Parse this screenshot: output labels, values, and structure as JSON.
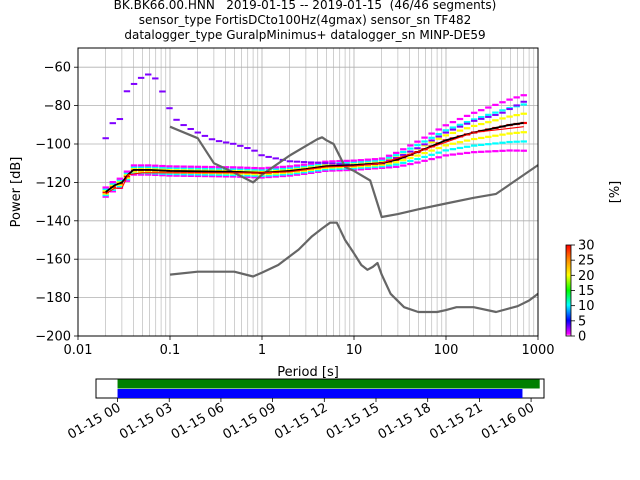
{
  "title_lines": [
    "BK.BK66.00.HNN   2019-01-15 -- 2019-01-15  (46/46 segments)",
    "sensor_type FortisDCto100Hz(4gmax) sensor_sn TF482",
    "datalogger_type GuralpMinimus+ datalogger_sn MINP-DE59"
  ],
  "chart_data": [
    {
      "type": "heatmap",
      "title": "BK.BK66.00.HNN   2019-01-15 -- 2019-01-15  (46/46 segments)",
      "xlabel": "Period [s]",
      "ylabel": "Power [dB]",
      "xscale": "log",
      "xlim": [
        0.01,
        1000
      ],
      "ylim": [
        -200,
        -50
      ],
      "xticks": [
        "0.01",
        "0.1",
        "1",
        "10",
        "100",
        "1000"
      ],
      "yticks": [
        -200,
        -180,
        -160,
        -140,
        -120,
        -100,
        -80,
        -60
      ],
      "grid": true,
      "colorbar": {
        "label": "[%]",
        "ticks": [
          0,
          5,
          10,
          15,
          20,
          25,
          30
        ],
        "range": [
          0,
          30
        ]
      },
      "colors": {
        "noise_models": "#666666",
        "mode": "#000000",
        "mean": "#ff0000",
        "high_outlier": "#7f00ff",
        "distribution": [
          "#ff00ff",
          "#0000ff",
          "#00ffff",
          "#00ff00",
          "#ffff00",
          "#ff8800",
          "#ff0000"
        ]
      },
      "series": [
        {
          "values": [
            [
              0.1,
              -91
            ],
            [
              0.2,
              -97
            ],
            [
              0.3,
              -110
            ],
            [
              0.5,
              -115
            ],
            [
              0.8,
              -120
            ],
            [
              1,
              -116
            ],
            [
              2,
              -106
            ],
            [
              3,
              -101
            ],
            [
              4,
              -97.5
            ],
            [
              4.5,
              -96.5
            ],
            [
              5,
              -98
            ],
            [
              6,
              -100
            ],
            [
              8,
              -112
            ],
            [
              10,
              -114
            ],
            [
              15,
              -119
            ],
            [
              20,
              -138
            ],
            [
              30,
              -136.5
            ],
            [
              50,
              -134
            ],
            [
              100,
              -131
            ],
            [
              200,
              -128
            ],
            [
              350,
              -126
            ],
            [
              1000,
              -111
            ]
          ]
        },
        {
          "values": [
            [
              0.1,
              -168
            ],
            [
              0.2,
              -166.5
            ],
            [
              0.5,
              -166.5
            ],
            [
              0.8,
              -169
            ],
            [
              1,
              -167
            ],
            [
              1.5,
              -163
            ],
            [
              2.5,
              -155
            ],
            [
              3.5,
              -148
            ],
            [
              4.5,
              -144
            ],
            [
              5.5,
              -141
            ],
            [
              6.5,
              -141
            ],
            [
              8,
              -150
            ],
            [
              10,
              -157
            ],
            [
              12,
              -163
            ],
            [
              14,
              -165.5
            ],
            [
              16,
              -164
            ],
            [
              18,
              -162
            ],
            [
              20,
              -168
            ],
            [
              25,
              -178
            ],
            [
              35,
              -185
            ],
            [
              50,
              -187.5
            ],
            [
              80,
              -187.5
            ],
            [
              100,
              -186.5
            ],
            [
              130,
              -185
            ],
            [
              200,
              -185
            ],
            [
              350,
              -187.5
            ],
            [
              600,
              -184.5
            ],
            [
              800,
              -181.5
            ],
            [
              1000,
              -178
            ]
          ]
        },
        {
          "values": [
            [
              0.02,
              -125
            ],
            [
              0.025,
              -121.5
            ],
            [
              0.03,
              -120
            ],
            [
              0.035,
              -116
            ],
            [
              0.04,
              -113.5
            ],
            [
              0.06,
              -113.5
            ],
            [
              0.1,
              -114
            ],
            [
              0.5,
              -114.5
            ],
            [
              1,
              -115
            ],
            [
              2,
              -114
            ],
            [
              3,
              -113
            ],
            [
              5,
              -111.5
            ],
            [
              10,
              -111
            ],
            [
              20,
              -110
            ],
            [
              30,
              -108
            ],
            [
              50,
              -104
            ],
            [
              80,
              -100
            ],
            [
              100,
              -98
            ],
            [
              200,
              -94
            ],
            [
              500,
              -90
            ],
            [
              700,
              -89
            ]
          ]
        },
        {
          "values": [
            [
              0.02,
              -126
            ],
            [
              0.025,
              -123
            ],
            [
              0.03,
              -123
            ],
            [
              0.035,
              -116
            ],
            [
              0.05,
              -115
            ],
            [
              0.1,
              -115
            ],
            [
              0.5,
              -115
            ],
            [
              1,
              -115
            ],
            [
              2,
              -114.5
            ],
            [
              5,
              -112
            ],
            [
              10,
              -111.5
            ],
            [
              20,
              -110
            ],
            [
              50,
              -104
            ],
            [
              100,
              -99
            ],
            [
              200,
              -94
            ],
            [
              700,
              -91
            ]
          ]
        },
        {
          "values": [
            [
              0.02,
              -97
            ],
            [
              0.022,
              -93
            ],
            [
              0.025,
              -87
            ],
            [
              0.03,
              -87
            ],
            [
              0.032,
              -76
            ],
            [
              0.035,
              -71
            ],
            [
              0.04,
              -69
            ],
            [
              0.045,
              -67
            ],
            [
              0.05,
              -65
            ],
            [
              0.055,
              -63.5
            ],
            [
              0.06,
              -64
            ],
            [
              0.07,
              -66
            ],
            [
              0.08,
              -71
            ],
            [
              0.09,
              -77
            ],
            [
              0.1,
              -82
            ],
            [
              0.12,
              -88
            ],
            [
              0.15,
              -91
            ],
            [
              0.2,
              -94
            ],
            [
              0.3,
              -98
            ],
            [
              0.5,
              -100
            ],
            [
              0.8,
              -103
            ],
            [
              1,
              -106
            ],
            [
              2,
              -109
            ],
            [
              5,
              -110
            ],
            [
              10,
              -111
            ],
            [
              20,
              -110
            ],
            [
              30,
              -107
            ],
            [
              50,
              -102
            ],
            [
              100,
              -94
            ],
            [
              200,
              -88
            ],
            [
              400,
              -84
            ],
            [
              700,
              -78
            ]
          ]
        }
      ]
    },
    {
      "type": "bar",
      "xticks": [
        "01-15 00",
        "01-15 03",
        "01-15 06",
        "01-15 09",
        "01-15 12",
        "01-15 15",
        "01-15 18",
        "01-15 21",
        "01-16 00"
      ],
      "xlim": [
        "2019-01-14 22:45",
        "2019-01-16 00:45"
      ],
      "series": [
        {
          "color": "#008000",
          "start": "2019-01-15 00:00",
          "end": "2019-01-16 00:30"
        },
        {
          "color": "#0000ff",
          "start": "2019-01-15 00:00",
          "end": "2019-01-15 23:30"
        }
      ]
    }
  ]
}
